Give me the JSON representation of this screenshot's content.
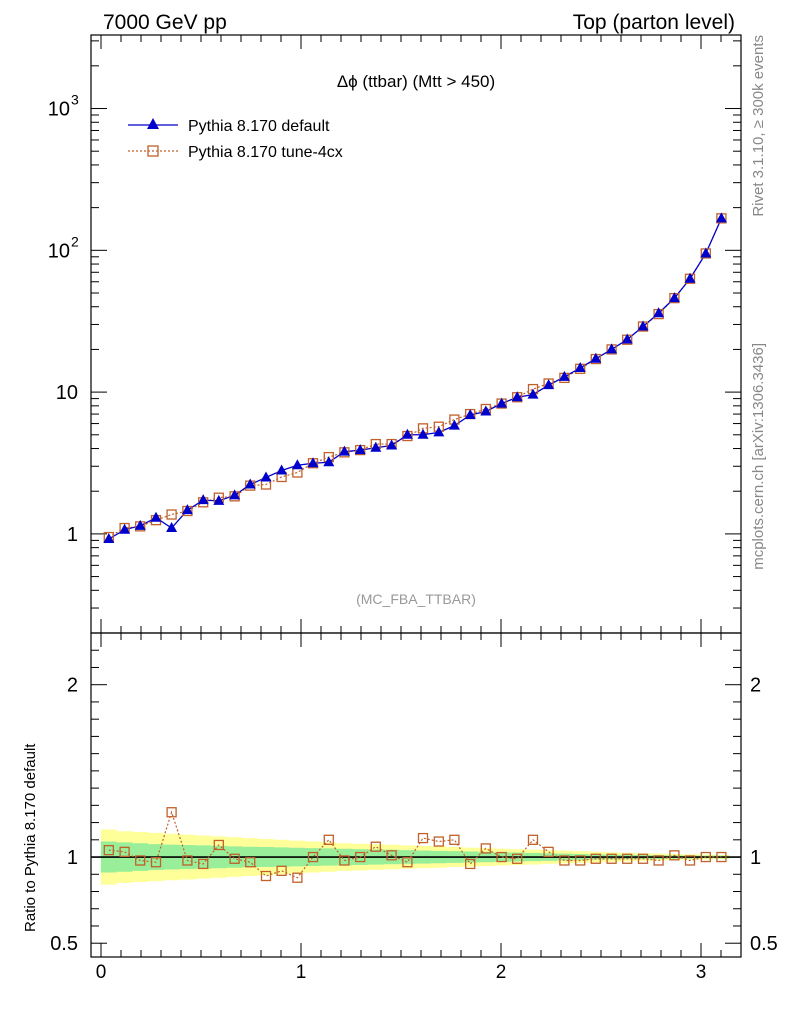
{
  "header": {
    "left": "7000 GeV pp",
    "right": "Top (parton level)"
  },
  "side_labels": {
    "rivet": "Rivet 3.1.10, ≥ 300k events",
    "mcplots": "mcplots.cern.ch [arXiv:1306.3436]"
  },
  "chart_data": {
    "type": "line",
    "title": "Δϕ (ttbar) (Mtt > 450)",
    "watermark": "(MC_FBA_TTBAR)",
    "ylabel_ratio": "Ratio to Pythia 8.170 default",
    "xlim": [
      -0.05,
      3.2
    ],
    "ylim": [
      0.2,
      3300
    ],
    "ylog": true,
    "ratio_ylim": [
      0.42,
      2.3
    ],
    "xticks": [
      "0",
      "1",
      "2",
      "3"
    ],
    "xtick_values": [
      0,
      1,
      2,
      3
    ],
    "yticks": [
      {
        "value": 1,
        "base": "1",
        "exp": ""
      },
      {
        "value": 10,
        "base": "10",
        "exp": ""
      },
      {
        "value": 100,
        "base": "10",
        "exp": "2"
      },
      {
        "value": 1000,
        "base": "10",
        "exp": "3"
      }
    ],
    "ratio_yticks": [
      "0.5",
      "1",
      "2"
    ],
    "ratio_ytick_values": [
      0.5,
      1,
      2
    ],
    "legend_position": "top-left",
    "colors": {
      "default": "#0000cc",
      "tune": "#c0602a",
      "band_inner": "#99ee99",
      "band_outer": "#ffff99"
    },
    "x": [
      0.039,
      0.118,
      0.196,
      0.275,
      0.353,
      0.432,
      0.511,
      0.589,
      0.668,
      0.746,
      0.825,
      0.903,
      0.982,
      1.06,
      1.139,
      1.217,
      1.296,
      1.374,
      1.453,
      1.532,
      1.61,
      1.689,
      1.767,
      1.846,
      1.924,
      2.003,
      2.081,
      2.16,
      2.238,
      2.317,
      2.396,
      2.474,
      2.553,
      2.631,
      2.71,
      2.788,
      2.867,
      2.945,
      3.024,
      3.102
    ],
    "series": [
      {
        "name": "Pythia 8.170 default",
        "marker": "triangle",
        "values": [
          0.92,
          1.07,
          1.14,
          1.3,
          1.1,
          1.47,
          1.73,
          1.71,
          1.87,
          2.23,
          2.5,
          2.8,
          3.05,
          3.15,
          3.2,
          3.8,
          3.9,
          4.05,
          4.2,
          5.0,
          5.0,
          5.2,
          5.8,
          6.9,
          7.3,
          8.3,
          9.2,
          9.6,
          11.2,
          12.8,
          14.8,
          17.2,
          20.0,
          23.5,
          29.0,
          36.0,
          46.0,
          63.0,
          95.0,
          168
        ]
      },
      {
        "name": "Pythia 8.170 tune-4cx",
        "marker": "open-square",
        "values": [
          0.95,
          1.1,
          1.13,
          1.25,
          1.37,
          1.45,
          1.67,
          1.8,
          1.84,
          2.19,
          2.23,
          2.52,
          2.71,
          3.15,
          3.48,
          3.76,
          3.9,
          4.3,
          4.3,
          4.9,
          5.55,
          5.7,
          6.4,
          7.0,
          7.6,
          8.3,
          9.2,
          10.5,
          11.5,
          12.6,
          14.6,
          17.1,
          20.0,
          23.4,
          29.0,
          35.5,
          46.0,
          63.0,
          95.0,
          168
        ]
      }
    ],
    "ratio": {
      "values": [
        1.04,
        1.03,
        0.98,
        0.97,
        1.26,
        0.98,
        0.96,
        1.07,
        0.99,
        0.97,
        0.89,
        0.92,
        0.88,
        1.0,
        1.1,
        0.98,
        1.0,
        1.06,
        1.01,
        0.97,
        1.11,
        1.09,
        1.1,
        0.96,
        1.05,
        1.0,
        0.99,
        1.1,
        1.03,
        0.98,
        0.98,
        0.99,
        0.99,
        0.99,
        0.99,
        0.98,
        1.01,
        0.98,
        1.0,
        1.0
      ],
      "band_inner_halfwidth": [
        0.09,
        0.085,
        0.08,
        0.075,
        0.072,
        0.07,
        0.068,
        0.065,
        0.062,
        0.06,
        0.058,
        0.056,
        0.054,
        0.052,
        0.05,
        0.048,
        0.046,
        0.044,
        0.042,
        0.04,
        0.038,
        0.036,
        0.034,
        0.032,
        0.03,
        0.028,
        0.026,
        0.024,
        0.022,
        0.02,
        0.018,
        0.016,
        0.014,
        0.013,
        0.012,
        0.011,
        0.01,
        0.009,
        0.008,
        0.008
      ],
      "band_outer_halfwidth": [
        0.16,
        0.15,
        0.145,
        0.14,
        0.135,
        0.13,
        0.125,
        0.12,
        0.115,
        0.11,
        0.105,
        0.1,
        0.095,
        0.09,
        0.085,
        0.08,
        0.077,
        0.074,
        0.071,
        0.068,
        0.065,
        0.062,
        0.058,
        0.055,
        0.052,
        0.049,
        0.046,
        0.043,
        0.04,
        0.037,
        0.034,
        0.031,
        0.028,
        0.025,
        0.022,
        0.02,
        0.018,
        0.016,
        0.014,
        0.012
      ]
    }
  }
}
